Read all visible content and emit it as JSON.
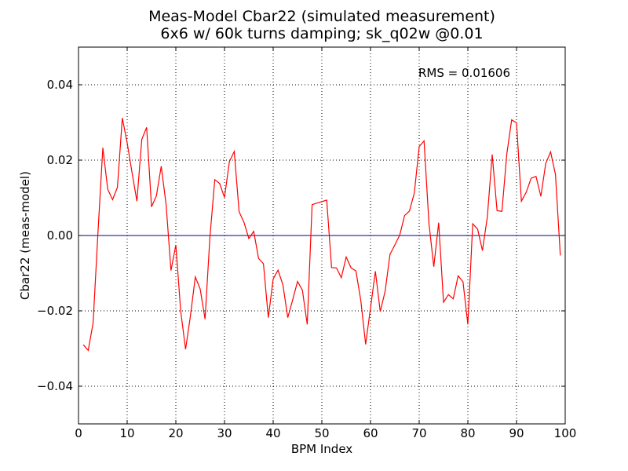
{
  "chart_data": {
    "type": "line",
    "title": "Meas-Model Cbar22 (simulated measurement)",
    "subtitle": "6x6 w/ 60k turns damping; sk_q02w @0.01",
    "xlabel": "BPM Index",
    "ylabel": "Cbar22 (meas-model)",
    "xlim": [
      0,
      100
    ],
    "ylim": [
      -0.05,
      0.05
    ],
    "xticks": [
      0,
      10,
      20,
      30,
      40,
      50,
      60,
      70,
      80,
      90,
      100
    ],
    "yticks": [
      -0.04,
      -0.02,
      0.0,
      0.02,
      0.04
    ],
    "xtick_labels": [
      "0",
      "10",
      "20",
      "30",
      "40",
      "50",
      "60",
      "70",
      "80",
      "90",
      "100"
    ],
    "ytick_labels": [
      "−0.04",
      "−0.02",
      "0.00",
      "0.02",
      "0.04"
    ],
    "grid": true,
    "annotation": "RMS = 0.01606",
    "reference_line": {
      "y": 0.0,
      "color": "#00008b"
    },
    "series": [
      {
        "color": "#ff0000",
        "x": [
          1,
          2,
          3,
          4,
          5,
          6,
          7,
          8,
          9,
          10,
          11,
          12,
          13,
          14,
          15,
          16,
          17,
          18,
          19,
          20,
          21,
          22,
          23,
          24,
          25,
          26,
          27,
          28,
          29,
          30,
          31,
          32,
          33,
          34,
          35,
          36,
          37,
          38,
          39,
          40,
          41,
          42,
          43,
          44,
          45,
          46,
          47,
          48,
          49,
          50,
          51,
          52,
          53,
          54,
          55,
          56,
          57,
          58,
          59,
          60,
          61,
          62,
          63,
          64,
          65,
          66,
          67,
          68,
          69,
          70,
          71,
          72,
          73,
          74,
          75,
          76,
          77,
          78,
          79,
          80,
          81,
          82,
          83,
          84,
          85,
          86,
          87,
          88,
          89,
          90,
          91,
          92,
          93,
          94,
          95,
          96,
          97,
          98,
          99
        ],
        "y": [
          -0.029,
          -0.0305,
          -0.0232,
          0.0008,
          0.0233,
          0.0123,
          0.0095,
          0.0128,
          0.0312,
          0.0246,
          0.0167,
          0.0091,
          0.0255,
          0.0287,
          0.0076,
          0.0105,
          0.0184,
          0.0082,
          -0.0093,
          -0.0025,
          -0.0201,
          -0.0302,
          -0.0213,
          -0.011,
          -0.0142,
          -0.0222,
          -0.0005,
          0.0148,
          0.0138,
          0.0101,
          0.0196,
          0.0223,
          0.0063,
          0.0035,
          -0.0008,
          0.0011,
          -0.0061,
          -0.0075,
          -0.0218,
          -0.0115,
          -0.0092,
          -0.0131,
          -0.0218,
          -0.0171,
          -0.0122,
          -0.0145,
          -0.0236,
          0.0082,
          0.0086,
          0.009,
          0.0094,
          -0.0085,
          -0.0086,
          -0.0112,
          -0.0057,
          -0.0086,
          -0.0094,
          -0.0172,
          -0.0289,
          -0.0192,
          -0.0095,
          -0.0202,
          -0.0148,
          -0.005,
          -0.0025,
          0.0001,
          0.0053,
          0.0065,
          0.0113,
          0.0236,
          0.0251,
          0.0033,
          -0.0083,
          0.0034,
          -0.0177,
          -0.0157,
          -0.0168,
          -0.0107,
          -0.0123,
          -0.0236,
          0.0031,
          0.0017,
          -0.004,
          0.0049,
          0.0215,
          0.0066,
          0.0064,
          0.0216,
          0.0307,
          0.0299,
          0.0091,
          0.0115,
          0.0152,
          0.0157,
          0.0104,
          0.0191,
          0.0222,
          0.0162,
          -0.0053
        ]
      }
    ]
  }
}
